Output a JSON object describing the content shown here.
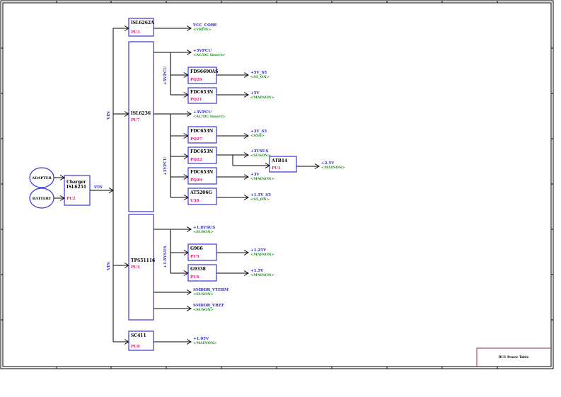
{
  "title_block": {
    "title": "DU1 Power Table"
  },
  "sources": [
    {
      "id": "adapter",
      "label": "ADAPTER"
    },
    {
      "id": "battery",
      "label": "BATTERY"
    }
  ],
  "charger": {
    "line1": "Charger",
    "line2": "ISL6251",
    "ref": "PU2",
    "output": "VIN"
  },
  "bus_labels": {
    "vin_upper": "VIN",
    "vin_lower": "VIN",
    "rail_5vpcu": "+5VPCU",
    "rail_3vpcu": "+3VPCU",
    "rail_18vsus": "+1.8VSUS"
  },
  "parts": [
    {
      "id": "pu3",
      "part": "ISL6262A",
      "ref": "PU3"
    },
    {
      "id": "pu7",
      "part": "ISL6236",
      "ref": "PU7"
    },
    {
      "id": "pu4",
      "part": "TPS51116",
      "ref": "PU4"
    },
    {
      "id": "pu8",
      "part": "SC411",
      "ref": "PU8"
    },
    {
      "id": "pq26",
      "part": "FDS6690AS",
      "ref": "PQ26"
    },
    {
      "id": "pq21",
      "part": "FDC653N",
      "ref": "PQ21"
    },
    {
      "id": "pq27",
      "part": "FDC653N",
      "ref": "PQ27"
    },
    {
      "id": "pq22",
      "part": "FDC653N",
      "ref": "PQ22"
    },
    {
      "id": "pq29",
      "part": "FDC653N",
      "ref": "PQ29"
    },
    {
      "id": "u38",
      "part": "AT5206G",
      "ref": "U38"
    },
    {
      "id": "pu1",
      "part": "ATB14",
      "ref": "PU1"
    },
    {
      "id": "pu5",
      "part": "G966",
      "ref": "PU5"
    },
    {
      "id": "pu6",
      "part": "G9338",
      "ref": "PU6"
    }
  ],
  "nets": [
    {
      "id": "vcc_core",
      "name": "VCC_CORE",
      "enable": "<VRON>"
    },
    {
      "id": "5vpcu",
      "name": "+5VPCU",
      "enable": "<AC/DC Insert>"
    },
    {
      "id": "5v_s5",
      "name": "+5V_S5",
      "enable": "<S5_ON>"
    },
    {
      "id": "5v",
      "name": "+5V",
      "enable": "<MAINON>"
    },
    {
      "id": "3vpcu",
      "name": "+3VPCU",
      "enable": "<AC/DC Insert>"
    },
    {
      "id": "3v_s5",
      "name": "+3V_S5",
      "enable": "<S5O>"
    },
    {
      "id": "3vsus",
      "name": "+3VSUS",
      "enable": "<SUSON>"
    },
    {
      "id": "3v",
      "name": "+3V",
      "enable": "<MAINON>"
    },
    {
      "id": "1_5v_s5",
      "name": "+1.5V_S5",
      "enable": "<S5_ON>"
    },
    {
      "id": "2_5v",
      "name": "+2.5V",
      "enable": "<MAINON>"
    },
    {
      "id": "1_8vsus",
      "name": "+1.8VSUS",
      "enable": "<SUSON>"
    },
    {
      "id": "1_25v",
      "name": "+1.25V",
      "enable": "<MAINON>"
    },
    {
      "id": "1_5v",
      "name": "+1.5V",
      "enable": "<MAINON>"
    },
    {
      "id": "smddr_vterm",
      "name": "SMDDR_VTERM",
      "enable": "<SUSON>"
    },
    {
      "id": "smddr_vref",
      "name": "SMDDR_VREF",
      "enable": "<SUSON>"
    },
    {
      "id": "1_05v",
      "name": "+1.05V",
      "enable": "<MAINON>"
    }
  ],
  "colors": {
    "box": "#3a3ad0",
    "ref": "#e0207a",
    "net": "#2a2ad0",
    "enable": "#1a8a1a",
    "title_block": "#a0507a"
  }
}
